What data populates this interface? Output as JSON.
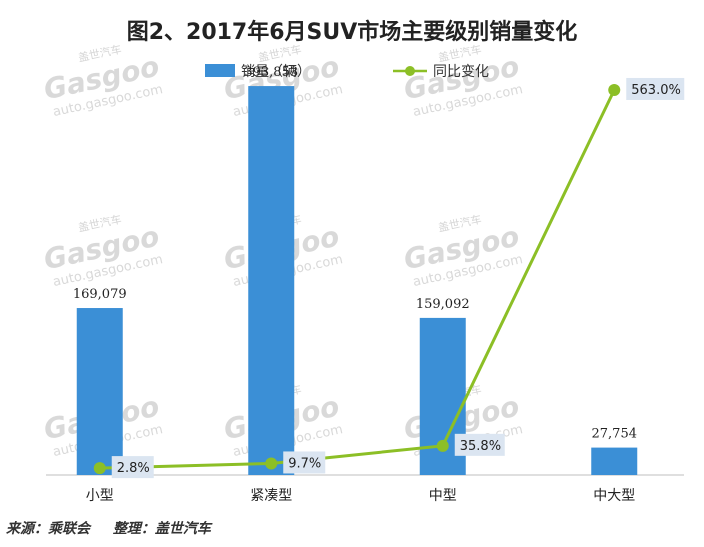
{
  "chart_data": {
    "type": "bar",
    "title": "图2、2017年6月SUV市场主要级别销量变化",
    "categories": [
      "小型",
      "紧凑型",
      "中型",
      "中大型"
    ],
    "series": [
      {
        "name": "销量（辆）",
        "type": "bar",
        "color": "#3b8fd6",
        "values": [
          169079,
          393853,
          159092,
          27754
        ],
        "labels": [
          "169,079",
          "393,853",
          "159,092",
          "27,754"
        ]
      },
      {
        "name": "同比变化",
        "type": "line",
        "color": "#8cbf26",
        "values": [
          2.8,
          9.7,
          35.8,
          563.0
        ],
        "labels": [
          "2.8%",
          "9.7%",
          "35.8%",
          "563.0%"
        ]
      }
    ],
    "legend_position": "top"
  },
  "watermark": {
    "brand_cn": "盖世汽车",
    "brand_en": "Gasgoo",
    "url": "auto.gasgoo.com"
  },
  "source": {
    "origin": "来源：乘联会",
    "organizer": "整理：盖世汽车"
  }
}
